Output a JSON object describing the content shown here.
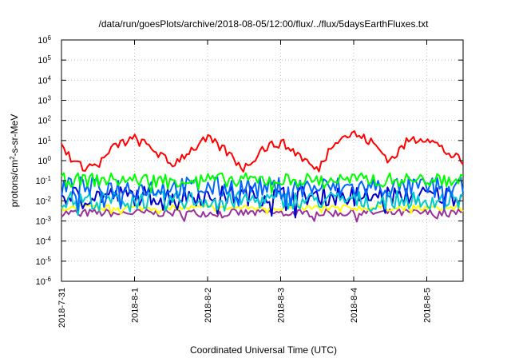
{
  "chart_data": {
    "type": "line",
    "title": "/data/run/goesPlots/archive/2018-08-05/12:00/flux/../flux/5daysEarthFluxes.txt",
    "xlabel": "Coordinated Universal Time (UTC)",
    "ylabel": {
      "pre": "protons/cm",
      "sup": "2",
      "post": "-s-sr-MeV"
    },
    "x_range": [
      "2018-07-31",
      "2018-08-05 12:00"
    ],
    "x_ticks": [
      "2018-7-31",
      "2018-8-1",
      "2018-8-2",
      "2018-8-3",
      "2018-8-4",
      "2018-8-5"
    ],
    "y_scale": "log",
    "y_range": [
      1e-06,
      1000000.0
    ],
    "y_ticks": [
      {
        "exp": "-6",
        "label": "10"
      },
      {
        "exp": "-5",
        "label": "10"
      },
      {
        "exp": "-4",
        "label": "10"
      },
      {
        "exp": "-3",
        "label": "10"
      },
      {
        "exp": "-2",
        "label": "10"
      },
      {
        "exp": "-1",
        "label": "10"
      },
      {
        "exp": "0",
        "label": "10"
      },
      {
        "exp": "1",
        "label": "10"
      },
      {
        "exp": "2",
        "label": "10"
      },
      {
        "exp": "3",
        "label": "10"
      },
      {
        "exp": "4",
        "label": "10"
      },
      {
        "exp": "5",
        "label": "10"
      },
      {
        "exp": "6",
        "label": "10"
      }
    ],
    "grid": true,
    "series": [
      {
        "color": "#ff0000",
        "day": [
          0,
          0.25,
          0.5,
          0.75,
          1.0,
          1.25,
          1.5,
          1.75,
          2.0,
          2.25,
          2.5,
          2.75,
          3.0,
          3.25,
          3.5,
          3.75,
          4.0,
          4.25,
          4.5,
          4.75,
          5.0,
          5.25,
          5.5
        ],
        "values": [
          5,
          0.5,
          0.6,
          6,
          12,
          4,
          0.6,
          3,
          12,
          3,
          0.4,
          4,
          8,
          2,
          0.3,
          12,
          22,
          8,
          1,
          10,
          15,
          3,
          0.8
        ],
        "noise": 0.25
      },
      {
        "color": "#00ff00",
        "base": 0.11,
        "noise": 0.35
      },
      {
        "color": "#0066ff",
        "base": 0.045,
        "noise": 0.55
      },
      {
        "color": "#00cccc",
        "base": 0.011,
        "noise": 0.45
      },
      {
        "color": "#0000cc",
        "base": 0.018,
        "noise": 0.5
      },
      {
        "color": "#ffff00",
        "base": 0.0045,
        "noise": 0.15
      },
      {
        "color": "#993399",
        "base": 0.0025,
        "noise": 0.2
      }
    ]
  }
}
